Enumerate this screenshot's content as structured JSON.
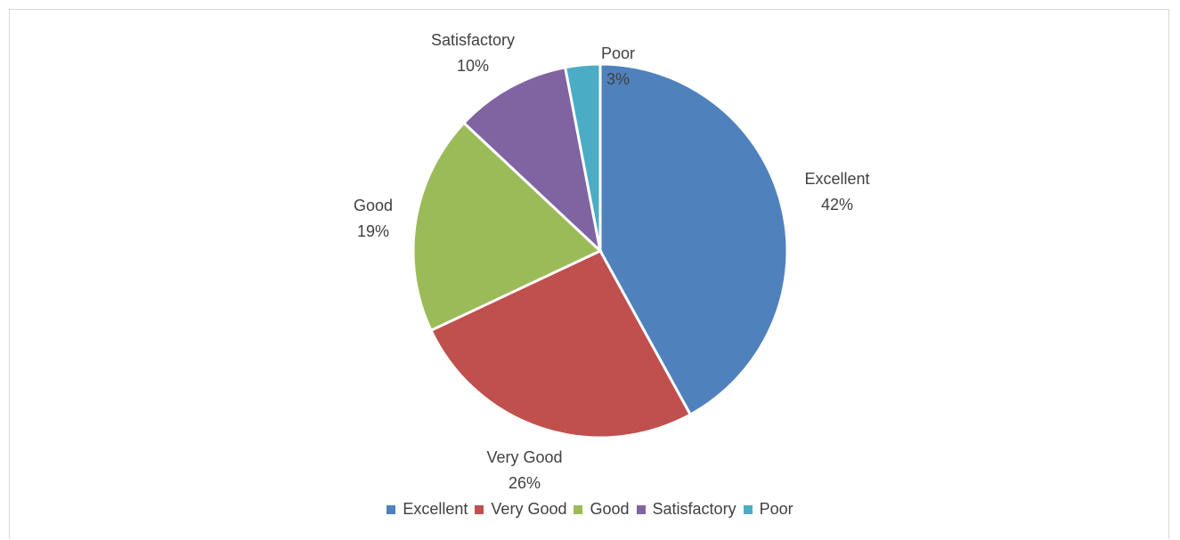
{
  "chart_data": {
    "type": "pie",
    "categories": [
      "Excellent",
      "Very Good",
      "Good",
      "Satisfactory",
      "Poor"
    ],
    "values": [
      42,
      26,
      19,
      10,
      3
    ],
    "value_labels": [
      "42%",
      "26%",
      "19%",
      "10%",
      "3%"
    ],
    "colors": [
      "#4f81bd",
      "#c0504d",
      "#9bbb59",
      "#8064a2",
      "#4bacc6"
    ],
    "legend_position": "bottom",
    "start_angle": "top, clockwise"
  }
}
